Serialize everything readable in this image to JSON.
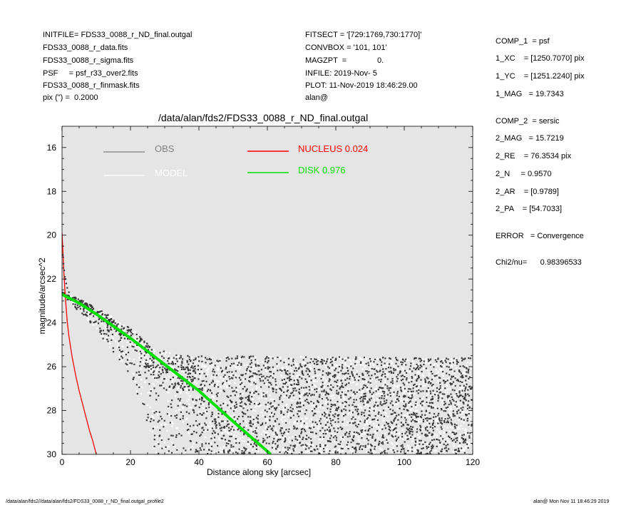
{
  "header_left": [
    "INITFILE= FDS33_0088_r_ND_final.outgal",
    "FDS33_0088_r_data.fits",
    "FDS33_0088_r_sigma.fits",
    "PSF     = psf_r33_over2.fits",
    "FDS33_0088_r_finmask.fits",
    "pix (\") =  0.2000"
  ],
  "header_mid": [
    "FITSECT = '[729:1769,730:1770]'",
    "CONVBOX = '101, 101'",
    "MAGZPT  =              0.",
    "INFILE: 2019-Nov- 5",
    "PLOT: 11-Nov-2019 18:46:29.00",
    "alan@"
  ],
  "components": [
    "COMP_1  = psf",
    "1_XC    = [1250.7070] pix",
    "1_YC    = [1251.2240] pix",
    "1_MAG   = 19.7343",
    "COMP_2  = sersic",
    "2_MAG   = 15.7219",
    "2_RE    = 76.3534 pix",
    "2_N     = 0.9570",
    "2_AR    = [0.9789]",
    "2_PA    = [54.7033]",
    "ERROR   = Convergence",
    "Chi2/nu=      0.98396533"
  ],
  "footer": {
    "left": "/data/alan/fds2//data/alan/fds2/FDS33_0088_r_ND_final.outgal_profile2",
    "right": "alan@  Mon Nov 11 18:46:29 2019"
  },
  "colors": {
    "background": "#e5e5e5",
    "obs": "#808080",
    "model": "#ffffff",
    "nucleus": "#ff0000",
    "disk": "#00e000",
    "scatter_dark": "#3a3a3a",
    "scatter_light": "#ffffff"
  },
  "chart_data": {
    "type": "scatter",
    "title": "/data/alan/fds2/FDS33_0088_r_ND_final.outgal",
    "xlabel": "Distance along sky [arcsec]",
    "ylabel": "magnitude/arcsec^2",
    "xlim": [
      0,
      120
    ],
    "ylim": [
      30,
      15
    ],
    "y_inverted": true,
    "xticks": [
      "0",
      "20",
      "40",
      "60",
      "80",
      "100",
      "120"
    ],
    "yticks": [
      "16",
      "18",
      "20",
      "22",
      "24",
      "26",
      "28",
      "30"
    ],
    "grid": false,
    "legend": [
      {
        "name": "OBS",
        "color": "#808080"
      },
      {
        "name": "MODEL",
        "color": "#ffffff"
      },
      {
        "name": "NUCLEUS  0.024",
        "color": "#ff0000"
      },
      {
        "name": "DISK  0.976",
        "color": "#00e000"
      }
    ],
    "series": [
      {
        "name": "NUCLEUS",
        "color": "#ff0000",
        "x": [
          0.0,
          0.2,
          0.5,
          1.0,
          1.5,
          2.0,
          3.0,
          4.0,
          5.0,
          6.0,
          7.0,
          8.0,
          9.0,
          10.0
        ],
        "y": [
          19.9,
          20.6,
          21.6,
          22.9,
          23.9,
          24.6,
          25.6,
          26.4,
          27.1,
          27.7,
          28.3,
          28.9,
          29.4,
          30.0
        ]
      },
      {
        "name": "DISK",
        "color": "#00e000",
        "x": [
          0,
          5,
          10,
          20,
          30,
          40,
          50,
          61
        ],
        "y": [
          22.7,
          23.1,
          23.6,
          24.7,
          25.9,
          27.1,
          28.5,
          30.0
        ]
      },
      {
        "name": "OBS core",
        "color": "#3a3a3a",
        "x": [
          0.2,
          0.4,
          0.6,
          0.8,
          1.0,
          1.2,
          1.5,
          2.0
        ],
        "y": [
          20.9,
          21.3,
          21.6,
          21.9,
          22.0,
          22.2,
          22.4,
          22.6
        ]
      }
    ],
    "scatter_model": {
      "upper_envelope": [
        [
          0,
          22.6
        ],
        [
          5,
          22.9
        ],
        [
          10,
          23.3
        ],
        [
          20,
          24.2
        ],
        [
          26,
          25.1
        ],
        [
          35,
          25.5
        ],
        [
          120,
          25.6
        ]
      ],
      "lower_envelope": [
        [
          0,
          22.7
        ],
        [
          10,
          24.3
        ],
        [
          20,
          26.4
        ],
        [
          25,
          28.6
        ],
        [
          27,
          30.0
        ],
        [
          120,
          30.0
        ]
      ],
      "dense_upper_band_below_x": 40,
      "count_per_style": 2600
    }
  }
}
